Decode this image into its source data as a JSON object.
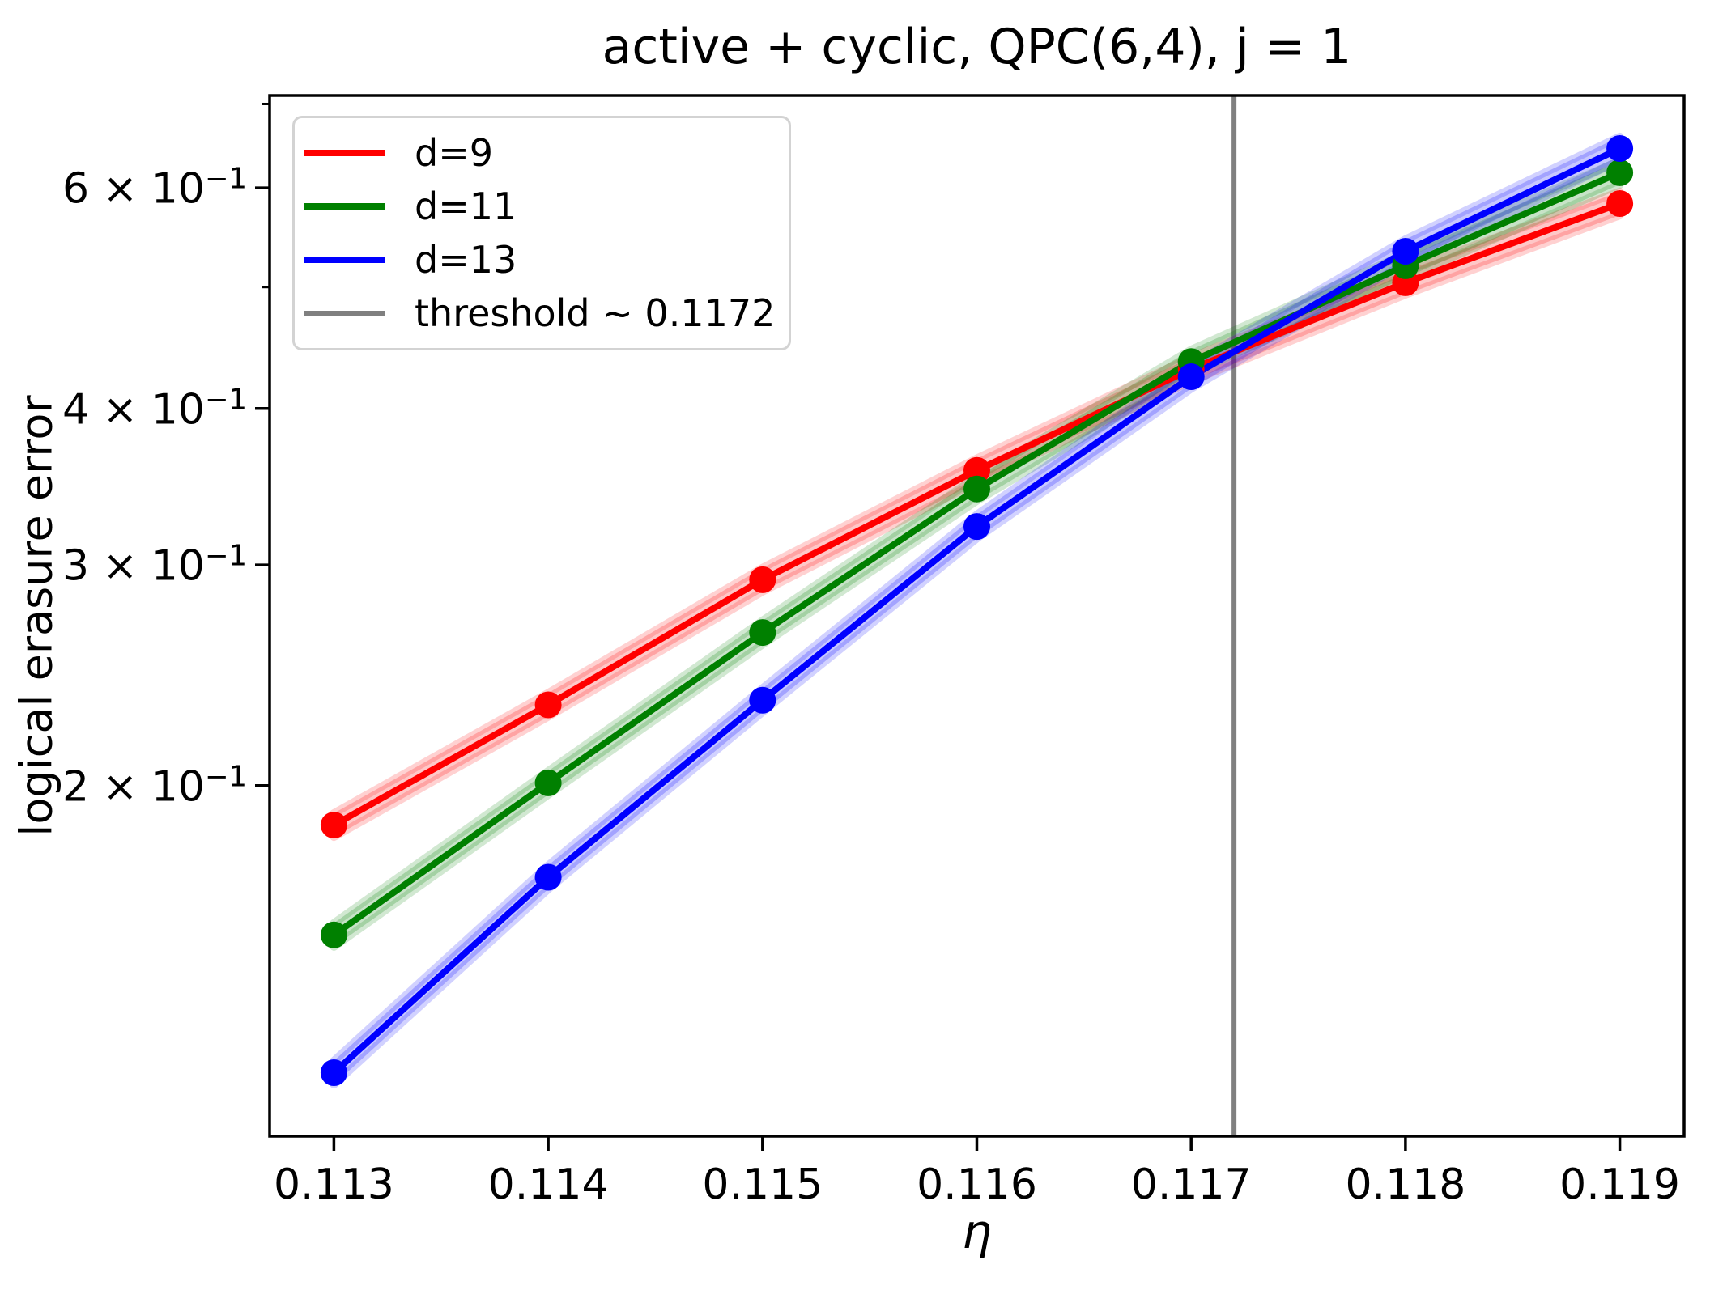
{
  "chart_data": {
    "type": "line",
    "title": "active + cyclic, QPC(6,4), j = 1",
    "xlabel": "η",
    "ylabel": "logical erasure error",
    "xscale": "linear",
    "yscale": "log",
    "xlim": [
      0.1127,
      0.1193
    ],
    "ylim": [
      0.105,
      0.711
    ],
    "grid": false,
    "legend_position": "upper left",
    "x": [
      0.113,
      0.114,
      0.115,
      0.116,
      0.117,
      0.118,
      0.119
    ],
    "series": [
      {
        "name": "d=9",
        "color": "#ff0000",
        "values": [
          0.186,
          0.232,
          0.292,
          0.357,
          0.43,
          0.504,
          0.583
        ]
      },
      {
        "name": "d=11",
        "color": "#008000",
        "values": [
          0.152,
          0.201,
          0.265,
          0.345,
          0.436,
          0.52,
          0.617
        ]
      },
      {
        "name": "d=13",
        "color": "#0000ff",
        "values": [
          0.118,
          0.169,
          0.234,
          0.322,
          0.424,
          0.534,
          0.645
        ]
      }
    ],
    "band_fraction": 0.022,
    "threshold": {
      "label": "threshold ~ 0.1172",
      "value": 0.1172,
      "color": "#808080"
    },
    "x_ticks": [
      {
        "value": 0.113,
        "label": "0.113"
      },
      {
        "value": 0.114,
        "label": "0.114"
      },
      {
        "value": 0.115,
        "label": "0.115"
      },
      {
        "value": 0.116,
        "label": "0.116"
      },
      {
        "value": 0.117,
        "label": "0.117"
      },
      {
        "value": 0.118,
        "label": "0.118"
      },
      {
        "value": 0.119,
        "label": "0.119"
      }
    ],
    "y_major_ticks": [
      {
        "value": 0.6,
        "label_base": "6 × 10",
        "label_exp": "−1"
      },
      {
        "value": 0.4,
        "label_base": "4 × 10",
        "label_exp": "−1"
      },
      {
        "value": 0.3,
        "label_base": "3 × 10",
        "label_exp": "−1"
      },
      {
        "value": 0.2,
        "label_base": "2 × 10",
        "label_exp": "−1"
      }
    ],
    "y_minor_ticks": [
      0.7,
      0.5
    ]
  }
}
